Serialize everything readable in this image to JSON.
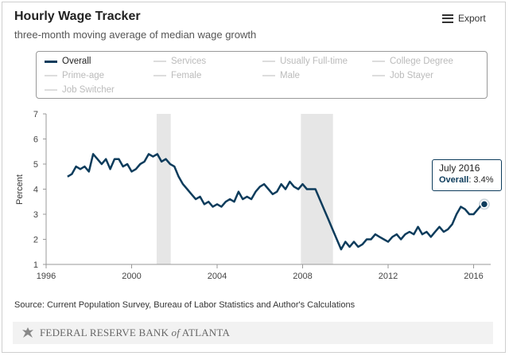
{
  "header": {
    "title": "Hourly Wage Tracker",
    "subtitle": "three-month moving average of median wage growth",
    "export_label": "Export"
  },
  "legend": [
    {
      "label": "Overall",
      "active": true
    },
    {
      "label": "Services",
      "active": false
    },
    {
      "label": "Usually Full-time",
      "active": false
    },
    {
      "label": "College Degree",
      "active": false
    },
    {
      "label": "Prime-age",
      "active": false
    },
    {
      "label": "Female",
      "active": false
    },
    {
      "label": "Male",
      "active": false
    },
    {
      "label": "Job Stayer",
      "active": false
    },
    {
      "label": "Job Switcher",
      "active": false
    }
  ],
  "tooltip": {
    "date": "July 2016",
    "series": "Overall",
    "value_text": ": 3.4%"
  },
  "source": "Source: Current Population Survey, Bureau of Labor Statistics and Author's Calculations",
  "footer": {
    "org_prefix": "FEDERAL RESERVE BANK ",
    "org_of": "of",
    "org_suffix": " ATLANTA"
  },
  "colors": {
    "series": "#0d3c5c",
    "recession": "#e6e6e6",
    "axis": "#999999"
  },
  "chart_data": {
    "type": "line",
    "ylabel": "Percent",
    "xlabel": "",
    "xlim": [
      1996,
      2016.8
    ],
    "ylim": [
      1,
      7
    ],
    "x_ticks": [
      1996,
      2000,
      2004,
      2008,
      2012,
      2016
    ],
    "y_ticks": [
      1,
      2,
      3,
      4,
      5,
      6,
      7
    ],
    "recession_bands": [
      [
        2001.17,
        2001.83
      ],
      [
        2007.92,
        2009.42
      ]
    ],
    "series": [
      {
        "name": "Overall",
        "points": [
          [
            1997.0,
            4.5
          ],
          [
            1997.2,
            4.6
          ],
          [
            1997.4,
            4.9
          ],
          [
            1997.6,
            4.8
          ],
          [
            1997.8,
            4.9
          ],
          [
            1998.0,
            4.7
          ],
          [
            1998.2,
            5.4
          ],
          [
            1998.4,
            5.2
          ],
          [
            1998.6,
            5.0
          ],
          [
            1998.8,
            5.2
          ],
          [
            1999.0,
            4.8
          ],
          [
            1999.2,
            5.2
          ],
          [
            1999.4,
            5.2
          ],
          [
            1999.6,
            4.9
          ],
          [
            1999.8,
            5.0
          ],
          [
            2000.0,
            4.7
          ],
          [
            2000.2,
            4.8
          ],
          [
            2000.4,
            5.0
          ],
          [
            2000.6,
            5.1
          ],
          [
            2000.8,
            5.4
          ],
          [
            2001.0,
            5.3
          ],
          [
            2001.2,
            5.4
          ],
          [
            2001.4,
            5.1
          ],
          [
            2001.6,
            5.2
          ],
          [
            2001.8,
            5.0
          ],
          [
            2002.0,
            4.9
          ],
          [
            2002.2,
            4.5
          ],
          [
            2002.4,
            4.2
          ],
          [
            2002.6,
            4.0
          ],
          [
            2002.8,
            3.8
          ],
          [
            2003.0,
            3.6
          ],
          [
            2003.2,
            3.7
          ],
          [
            2003.4,
            3.4
          ],
          [
            2003.6,
            3.5
          ],
          [
            2003.8,
            3.3
          ],
          [
            2004.0,
            3.4
          ],
          [
            2004.2,
            3.3
          ],
          [
            2004.4,
            3.5
          ],
          [
            2004.6,
            3.6
          ],
          [
            2004.8,
            3.5
          ],
          [
            2005.0,
            3.9
          ],
          [
            2005.2,
            3.6
          ],
          [
            2005.4,
            3.7
          ],
          [
            2005.6,
            3.6
          ],
          [
            2005.8,
            3.9
          ],
          [
            2006.0,
            4.1
          ],
          [
            2006.2,
            4.2
          ],
          [
            2006.4,
            4.0
          ],
          [
            2006.6,
            3.8
          ],
          [
            2006.8,
            3.9
          ],
          [
            2007.0,
            4.2
          ],
          [
            2007.2,
            4.0
          ],
          [
            2007.4,
            4.3
          ],
          [
            2007.6,
            4.1
          ],
          [
            2007.8,
            4.0
          ],
          [
            2008.0,
            4.2
          ],
          [
            2008.2,
            4.0
          ],
          [
            2008.4,
            4.0
          ],
          [
            2008.6,
            4.0
          ],
          [
            2008.8,
            3.6
          ],
          [
            2009.0,
            3.2
          ],
          [
            2009.2,
            2.8
          ],
          [
            2009.4,
            2.4
          ],
          [
            2009.6,
            2.0
          ],
          [
            2009.8,
            1.6
          ],
          [
            2010.0,
            1.9
          ],
          [
            2010.2,
            1.7
          ],
          [
            2010.4,
            1.9
          ],
          [
            2010.6,
            1.7
          ],
          [
            2010.8,
            1.8
          ],
          [
            2011.0,
            2.0
          ],
          [
            2011.2,
            2.0
          ],
          [
            2011.4,
            2.2
          ],
          [
            2011.6,
            2.1
          ],
          [
            2011.8,
            2.0
          ],
          [
            2012.0,
            1.9
          ],
          [
            2012.2,
            2.1
          ],
          [
            2012.4,
            2.2
          ],
          [
            2012.6,
            2.0
          ],
          [
            2012.8,
            2.2
          ],
          [
            2013.0,
            2.3
          ],
          [
            2013.2,
            2.2
          ],
          [
            2013.4,
            2.5
          ],
          [
            2013.6,
            2.2
          ],
          [
            2013.8,
            2.3
          ],
          [
            2014.0,
            2.1
          ],
          [
            2014.2,
            2.3
          ],
          [
            2014.4,
            2.5
          ],
          [
            2014.6,
            2.3
          ],
          [
            2014.8,
            2.4
          ],
          [
            2015.0,
            2.6
          ],
          [
            2015.2,
            3.0
          ],
          [
            2015.4,
            3.3
          ],
          [
            2015.6,
            3.2
          ],
          [
            2015.8,
            3.0
          ],
          [
            2016.0,
            3.0
          ],
          [
            2016.2,
            3.2
          ],
          [
            2016.4,
            3.4
          ],
          [
            2016.5,
            3.4
          ]
        ]
      }
    ]
  }
}
